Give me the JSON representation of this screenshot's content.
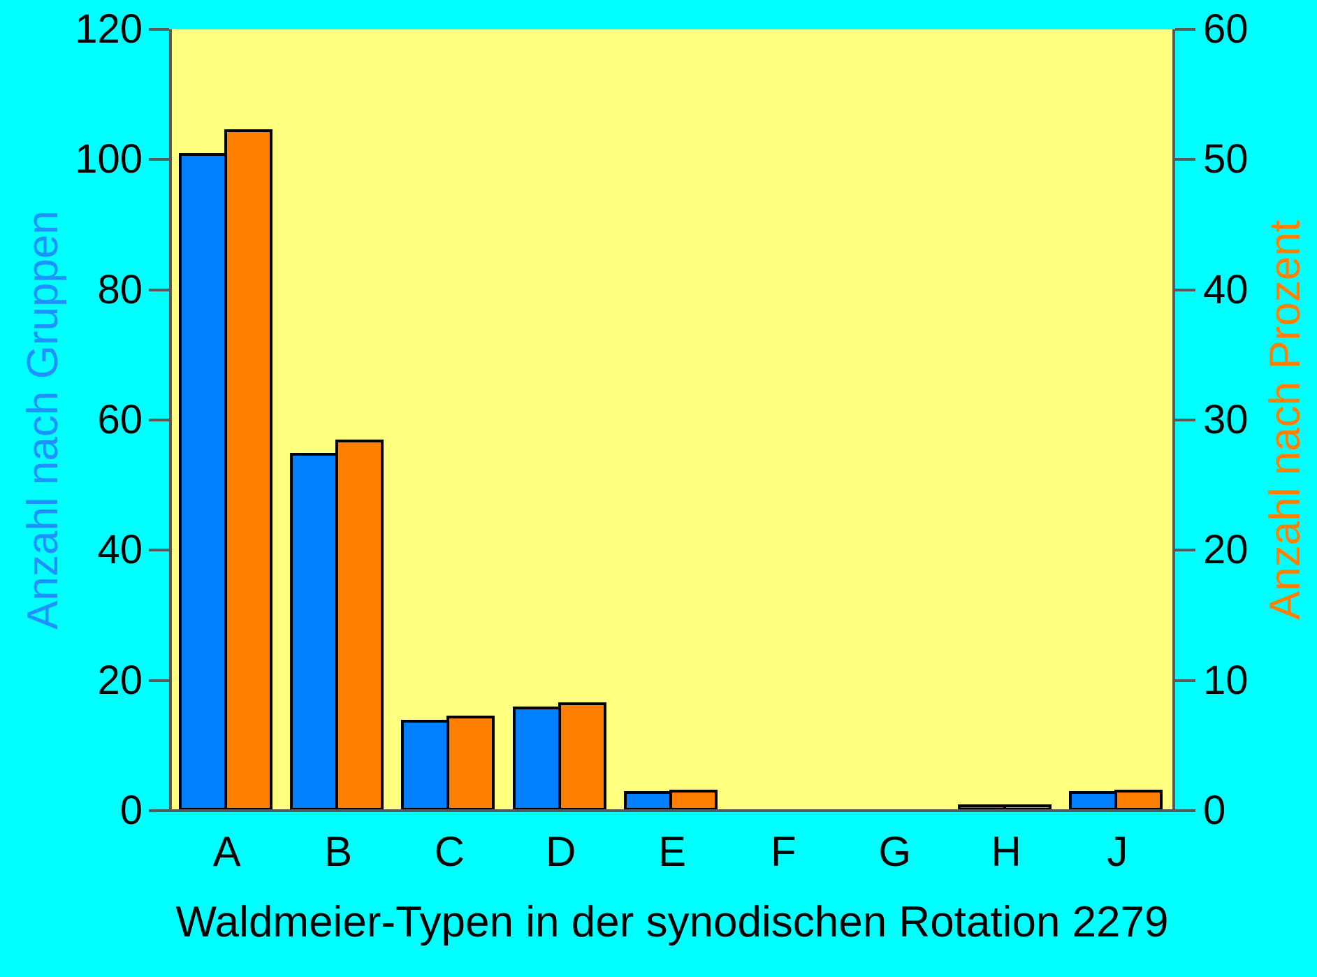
{
  "chart_data": {
    "type": "bar",
    "title": "",
    "xlabel": "Waldmeier-Typen in der synodischen Rotation 2279",
    "categories": [
      "A",
      "B",
      "C",
      "D",
      "E",
      "F",
      "G",
      "H",
      "J"
    ],
    "series": [
      {
        "name": "Anzahl nach Gruppen",
        "axis": "left",
        "color": "#0080FF",
        "values": [
          101,
          55,
          14,
          16,
          3,
          0,
          0,
          1,
          3
        ]
      },
      {
        "name": "Anzahl nach Prozent",
        "axis": "right",
        "color": "#FF8000",
        "values": [
          52.3,
          28.5,
          7.3,
          8.3,
          1.6,
          0,
          0,
          0.5,
          1.6
        ]
      }
    ],
    "left_axis": {
      "label": "Anzahl nach Gruppen",
      "label_color": "#1E90FF",
      "min": 0,
      "max": 120,
      "ticks": [
        0,
        20,
        40,
        60,
        80,
        100,
        120
      ]
    },
    "right_axis": {
      "label": "Anzahl nach Prozent",
      "label_color": "#FF8000",
      "min": 0,
      "max": 60,
      "ticks": [
        0,
        10,
        20,
        30,
        40,
        50,
        60
      ]
    },
    "grid": false,
    "legend": "none",
    "plot_bg": "#FFFF80",
    "page_bg": "#00FFFF",
    "bar_outline_color": "#000000",
    "axis_line_color": "#595959"
  }
}
